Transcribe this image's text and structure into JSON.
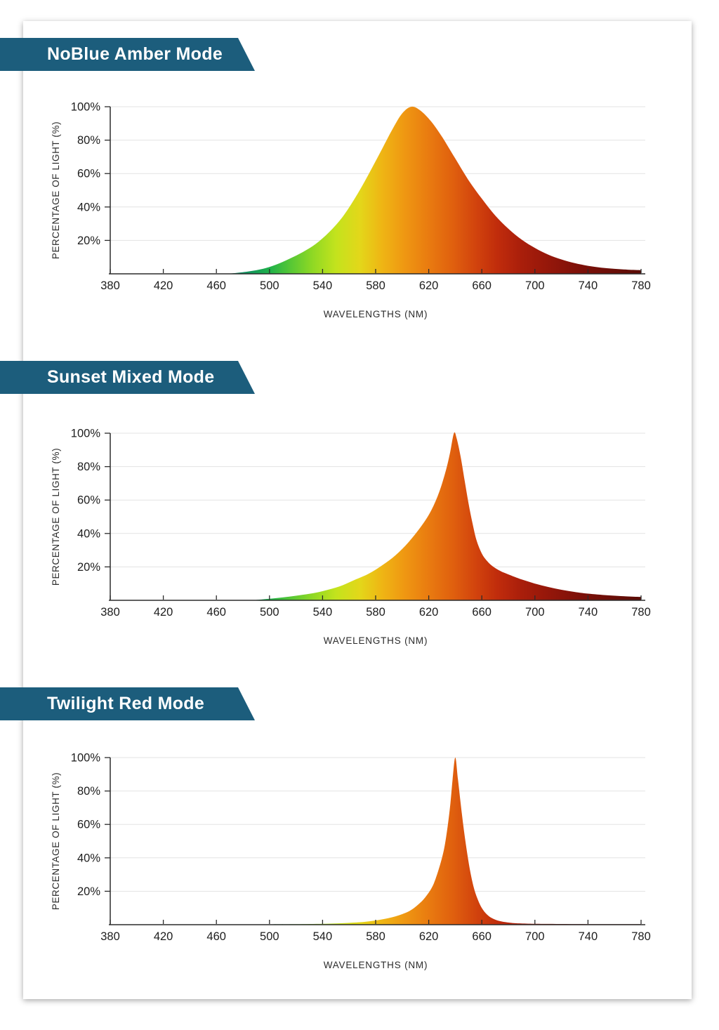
{
  "colors": {
    "banner": "#1c5d7c",
    "axis": "#2b2b2b",
    "grid": "#e3e3e3",
    "tick_text": "#1d1d1d",
    "axis_title_text": "#2b2b2b"
  },
  "spectrum_gradient": [
    {
      "nm": 465,
      "color": "#127a6e"
    },
    {
      "nm": 485,
      "color": "#13955c"
    },
    {
      "nm": 500,
      "color": "#1fb14a"
    },
    {
      "nm": 515,
      "color": "#53c636"
    },
    {
      "nm": 532,
      "color": "#8ed824"
    },
    {
      "nm": 550,
      "color": "#c3e31d"
    },
    {
      "nm": 568,
      "color": "#e3d71a"
    },
    {
      "nm": 585,
      "color": "#efb514"
    },
    {
      "nm": 602,
      "color": "#ef9712"
    },
    {
      "nm": 620,
      "color": "#e97b10"
    },
    {
      "nm": 638,
      "color": "#e0600e"
    },
    {
      "nm": 655,
      "color": "#d2440d"
    },
    {
      "nm": 672,
      "color": "#c02c0c"
    },
    {
      "nm": 690,
      "color": "#a91e0b"
    },
    {
      "nm": 710,
      "color": "#95170a"
    },
    {
      "nm": 735,
      "color": "#7c1009"
    },
    {
      "nm": 780,
      "color": "#5a0c06"
    }
  ],
  "chart_data": [
    {
      "type": "area",
      "title": "NoBlue Amber Mode",
      "xlabel": "WAVELENGTHS (NM)",
      "ylabel": "PERCENTAGE OF LIGHT (%)",
      "xlim": [
        380,
        780
      ],
      "ylim": [
        0,
        100
      ],
      "x_ticks": [
        380,
        420,
        460,
        500,
        540,
        580,
        620,
        660,
        700,
        740,
        780
      ],
      "y_ticks": [
        20,
        40,
        60,
        80,
        100
      ],
      "y_suffix": "%",
      "grid": "horizontal",
      "legend": "none",
      "peak_nm": 607,
      "points": [
        [
          468,
          0
        ],
        [
          475,
          0.5
        ],
        [
          485,
          1.5
        ],
        [
          495,
          3
        ],
        [
          505,
          5.5
        ],
        [
          515,
          9
        ],
        [
          525,
          13
        ],
        [
          535,
          18
        ],
        [
          545,
          25
        ],
        [
          555,
          34
        ],
        [
          565,
          46
        ],
        [
          575,
          60
        ],
        [
          585,
          75
        ],
        [
          593,
          87
        ],
        [
          600,
          96
        ],
        [
          607,
          100
        ],
        [
          614,
          97.5
        ],
        [
          622,
          91
        ],
        [
          630,
          82
        ],
        [
          640,
          69
        ],
        [
          650,
          56
        ],
        [
          660,
          45
        ],
        [
          670,
          35
        ],
        [
          680,
          27
        ],
        [
          690,
          20.5
        ],
        [
          700,
          15.5
        ],
        [
          710,
          11.5
        ],
        [
          720,
          8.6
        ],
        [
          730,
          6.4
        ],
        [
          740,
          4.8
        ],
        [
          750,
          3.7
        ],
        [
          760,
          3
        ],
        [
          770,
          2.5
        ],
        [
          780,
          2.2
        ]
      ]
    },
    {
      "type": "area",
      "title": "Sunset Mixed Mode",
      "xlabel": "WAVELENGTHS (NM)",
      "ylabel": "PERCENTAGE OF LIGHT (%)",
      "xlim": [
        380,
        780
      ],
      "ylim": [
        0,
        100
      ],
      "x_ticks": [
        380,
        420,
        460,
        500,
        540,
        580,
        620,
        660,
        700,
        740,
        780
      ],
      "y_ticks": [
        20,
        40,
        60,
        80,
        100
      ],
      "y_suffix": "%",
      "grid": "horizontal",
      "legend": "none",
      "peak_nm": 639,
      "points": [
        [
          487,
          0
        ],
        [
          495,
          0.6
        ],
        [
          505,
          1.3
        ],
        [
          515,
          2.2
        ],
        [
          525,
          3.3
        ],
        [
          535,
          4.6
        ],
        [
          545,
          6.5
        ],
        [
          555,
          9
        ],
        [
          565,
          12.5
        ],
        [
          575,
          16
        ],
        [
          585,
          21
        ],
        [
          595,
          27
        ],
        [
          605,
          35
        ],
        [
          615,
          45
        ],
        [
          622,
          54
        ],
        [
          628,
          65
        ],
        [
          633,
          78
        ],
        [
          636,
          88
        ],
        [
          639,
          100
        ],
        [
          641,
          97
        ],
        [
          644,
          86
        ],
        [
          647,
          72
        ],
        [
          650,
          58
        ],
        [
          653,
          46
        ],
        [
          656,
          36
        ],
        [
          660,
          28
        ],
        [
          664,
          23.5
        ],
        [
          668,
          20.5
        ],
        [
          674,
          17.5
        ],
        [
          680,
          15.5
        ],
        [
          690,
          12.5
        ],
        [
          700,
          10
        ],
        [
          710,
          8
        ],
        [
          720,
          6.3
        ],
        [
          730,
          5
        ],
        [
          740,
          4
        ],
        [
          755,
          3
        ],
        [
          770,
          2.3
        ],
        [
          780,
          2
        ]
      ]
    },
    {
      "type": "area",
      "title": "Twilight Red Mode",
      "xlabel": "WAVELENGTHS (NM)",
      "ylabel": "PERCENTAGE OF LIGHT (%)",
      "xlim": [
        380,
        780
      ],
      "ylim": [
        0,
        100
      ],
      "x_ticks": [
        380,
        420,
        460,
        500,
        540,
        580,
        620,
        660,
        700,
        740,
        780
      ],
      "y_ticks": [
        20,
        40,
        60,
        80,
        100
      ],
      "y_suffix": "%",
      "grid": "horizontal",
      "legend": "none",
      "peak_nm": 640,
      "points": [
        [
          500,
          0.2
        ],
        [
          520,
          0.3
        ],
        [
          540,
          0.5
        ],
        [
          555,
          0.9
        ],
        [
          565,
          1.3
        ],
        [
          575,
          2
        ],
        [
          585,
          3.2
        ],
        [
          595,
          5
        ],
        [
          605,
          8
        ],
        [
          612,
          12
        ],
        [
          618,
          17
        ],
        [
          624,
          25
        ],
        [
          630,
          40
        ],
        [
          633,
          52
        ],
        [
          636,
          70
        ],
        [
          638,
          87
        ],
        [
          640,
          100
        ],
        [
          642,
          87
        ],
        [
          645,
          66
        ],
        [
          648,
          48
        ],
        [
          651,
          33
        ],
        [
          654,
          22
        ],
        [
          657,
          15
        ],
        [
          660,
          10
        ],
        [
          664,
          6
        ],
        [
          668,
          3.8
        ],
        [
          672,
          2.5
        ],
        [
          678,
          1.5
        ],
        [
          685,
          0.9
        ],
        [
          695,
          0.6
        ],
        [
          710,
          0.45
        ],
        [
          740,
          0.35
        ],
        [
          780,
          0.3
        ]
      ]
    }
  ]
}
